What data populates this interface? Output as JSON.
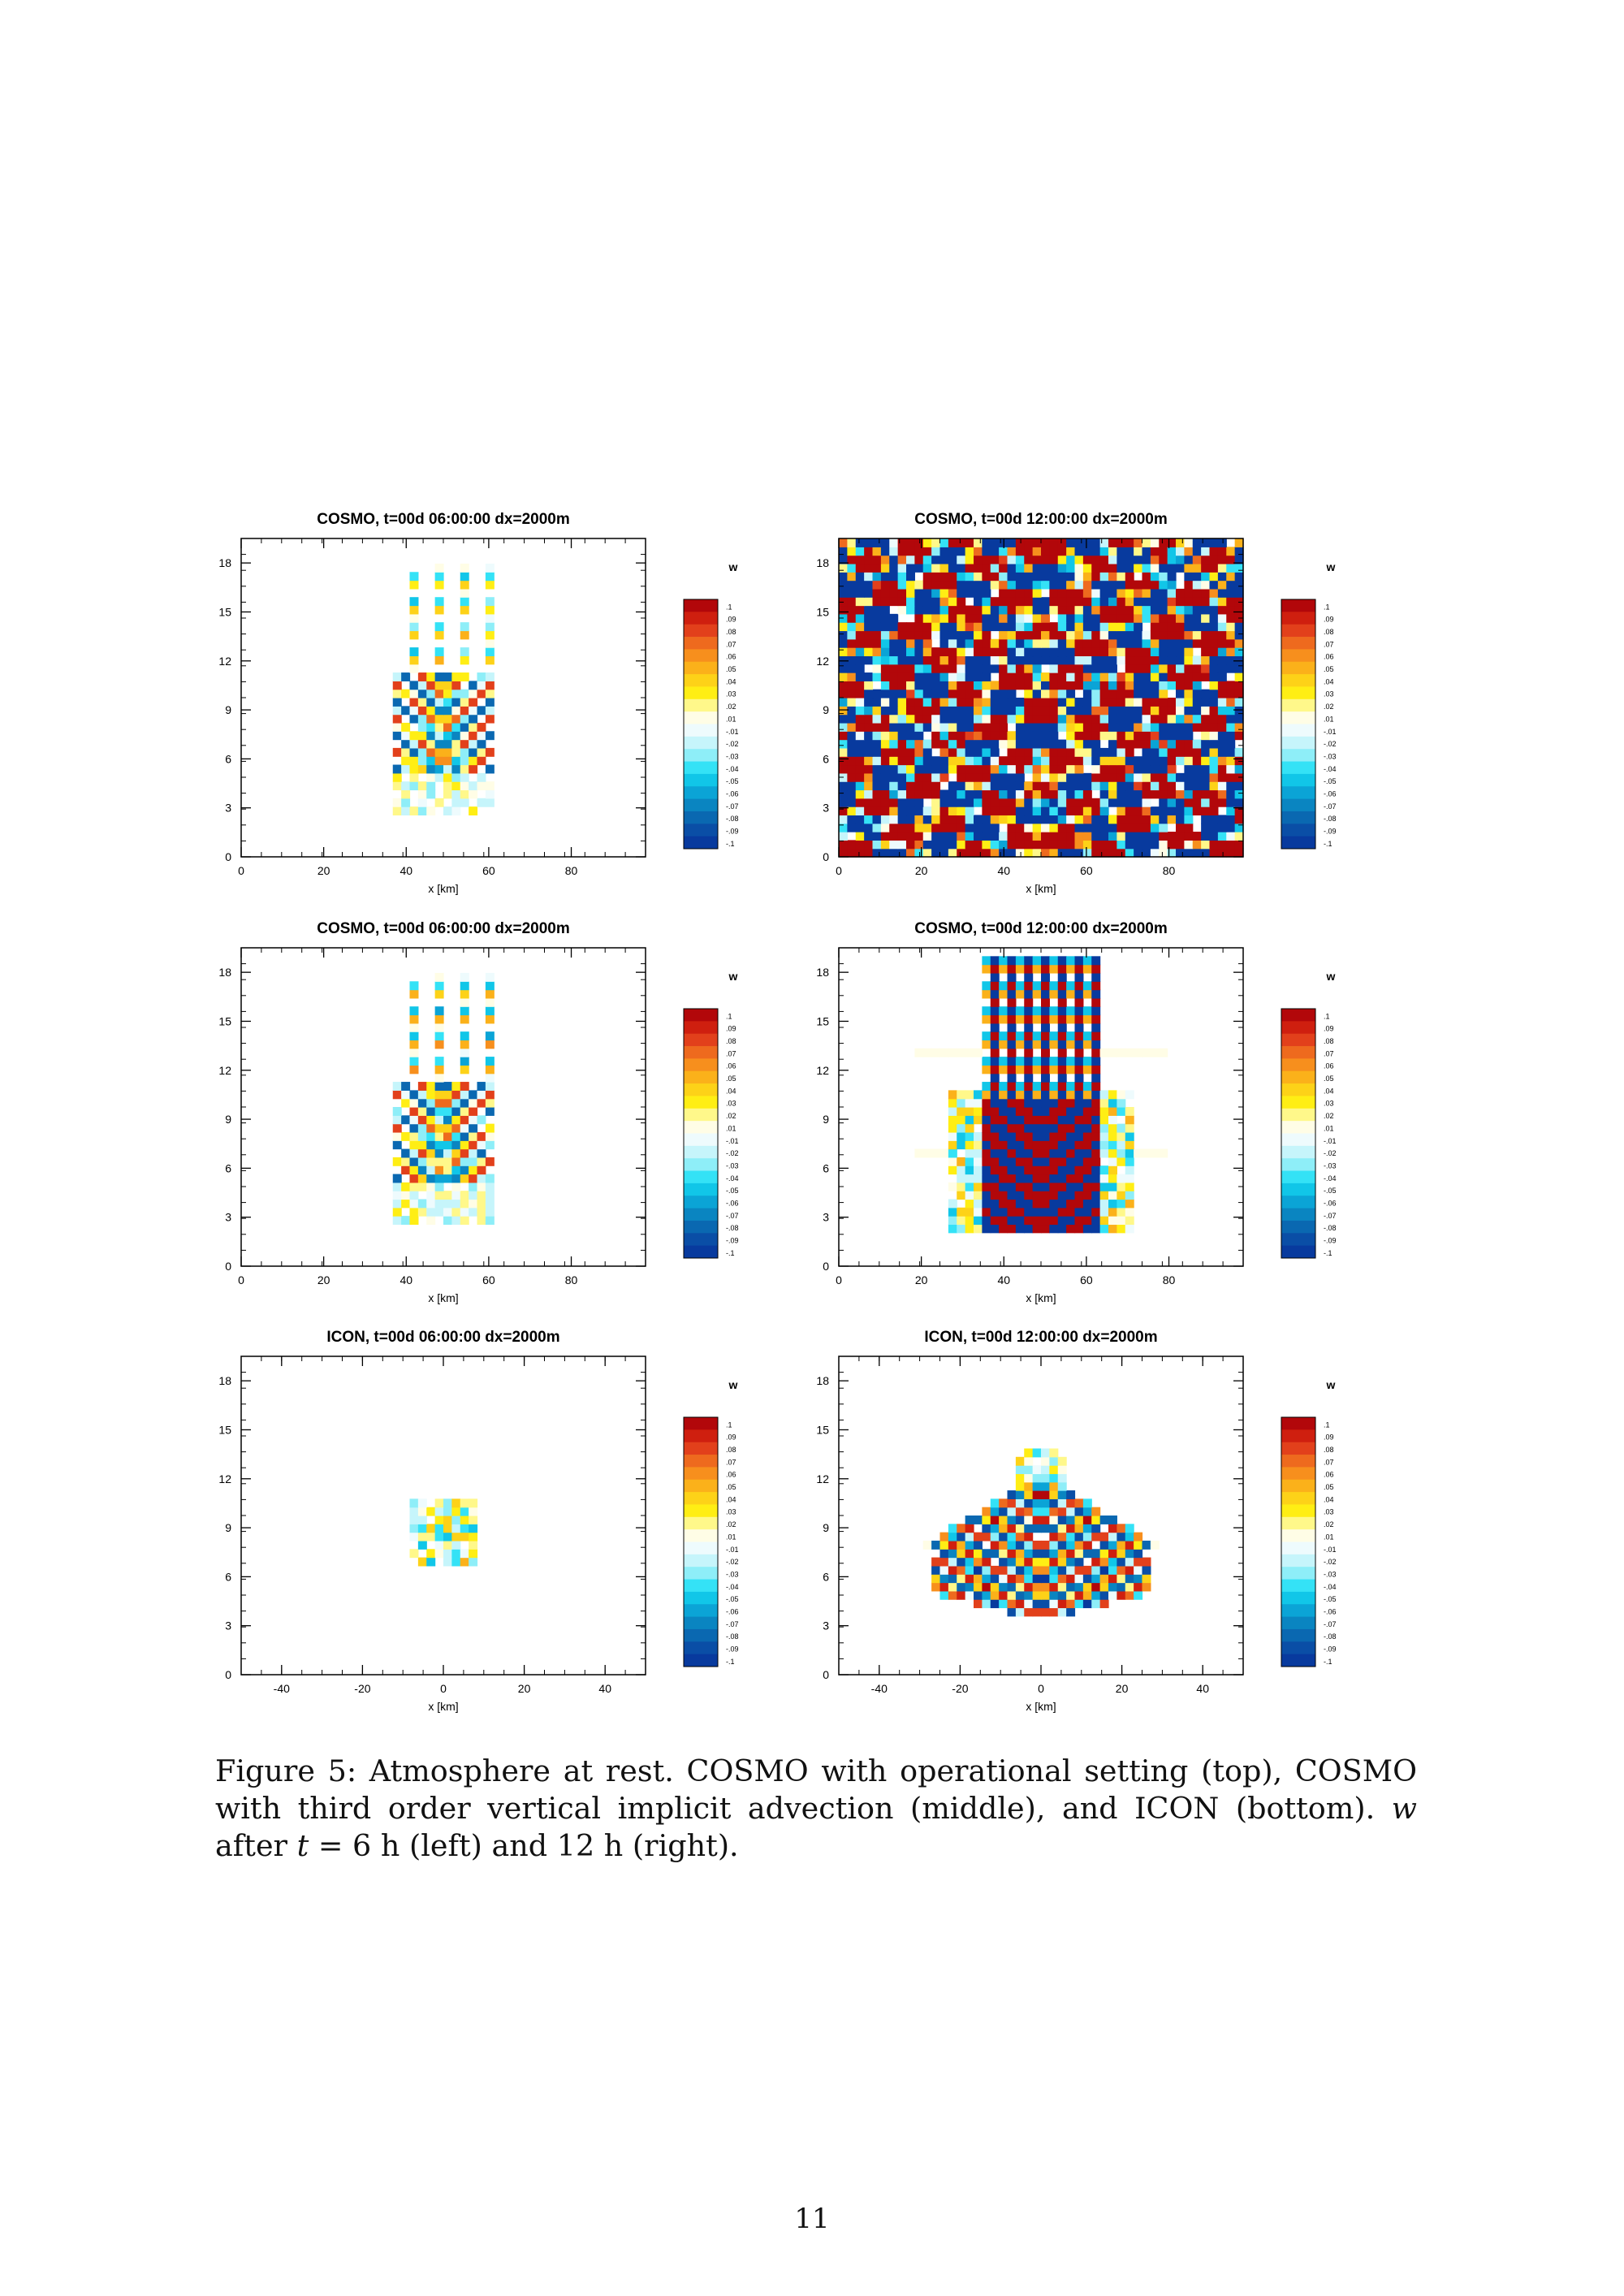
{
  "figure": {
    "panels": [
      {
        "title": "COSMO, t=00d 06:00:00 dx=2000m",
        "xlabel": "x [km]",
        "x_ticks": [
          "0",
          "20",
          "40",
          "60",
          "80"
        ],
        "y_ticks": [
          "0",
          "3",
          "6",
          "9",
          "12",
          "15",
          "18"
        ],
        "pattern": "cosmo_op_6h"
      },
      {
        "title": "COSMO, t=00d 12:00:00 dx=2000m",
        "xlabel": "x [km]",
        "x_ticks": [
          "0",
          "20",
          "40",
          "60",
          "80"
        ],
        "y_ticks": [
          "0",
          "3",
          "6",
          "9",
          "12",
          "15",
          "18"
        ],
        "pattern": "cosmo_op_12h"
      },
      {
        "title": "COSMO, t=00d 06:00:00 dx=2000m",
        "xlabel": "x [km]",
        "x_ticks": [
          "0",
          "20",
          "40",
          "60",
          "80"
        ],
        "y_ticks": [
          "0",
          "3",
          "6",
          "9",
          "12",
          "15",
          "18"
        ],
        "pattern": "cosmo_3rd_6h"
      },
      {
        "title": "COSMO, t=00d 12:00:00 dx=2000m",
        "xlabel": "x [km]",
        "x_ticks": [
          "0",
          "20",
          "40",
          "60",
          "80"
        ],
        "y_ticks": [
          "0",
          "3",
          "6",
          "9",
          "12",
          "15",
          "18"
        ],
        "pattern": "cosmo_3rd_12h"
      },
      {
        "title": "ICON, t=00d 06:00:00 dx=2000m",
        "xlabel": "x [km]",
        "x_ticks": [
          "-40",
          "-20",
          "0",
          "20",
          "40"
        ],
        "y_ticks": [
          "0",
          "3",
          "6",
          "9",
          "12",
          "15",
          "18"
        ],
        "pattern": "icon_6h"
      },
      {
        "title": "ICON, t=00d 12:00:00 dx=2000m",
        "xlabel": "x [km]",
        "x_ticks": [
          "-40",
          "-20",
          "0",
          "20",
          "40"
        ],
        "y_ticks": [
          "0",
          "3",
          "6",
          "9",
          "12",
          "15",
          "18"
        ],
        "pattern": "icon_12h"
      }
    ],
    "colorbar": {
      "title": "w",
      "labels": [
        ".1",
        ".09",
        ".08",
        ".07",
        ".06",
        ".05",
        ".04",
        ".03",
        ".02",
        ".01",
        "-.01",
        "-.02",
        "-.03",
        "-.04",
        "-.05",
        "-.06",
        "-.07",
        "-.08",
        "-.09",
        "-.1"
      ],
      "colors": [
        "#b2070a",
        "#cf1f0f",
        "#e2401b",
        "#ee6a1e",
        "#f78f1d",
        "#fbb11a",
        "#fdd218",
        "#ffee14",
        "#fff88a",
        "#fffde6",
        "#eefbfd",
        "#c6f5fb",
        "#8eeef8",
        "#34e2f6",
        "#11c6e8",
        "#0ba4d6",
        "#0a85c1",
        "#0a68b1",
        "#0a4ea6",
        "#083a9e"
      ]
    }
  },
  "caption": {
    "label": "Figure 5:",
    "text_parts": [
      " Atmosphere at rest. COSMO with operational setting (top), COSMO with third order vertical implicit advection (middle), and ICON (bottom). ",
      "w",
      " after ",
      "t",
      " = 6 h (left) and 12 h (right)."
    ]
  },
  "page_number": "11"
}
